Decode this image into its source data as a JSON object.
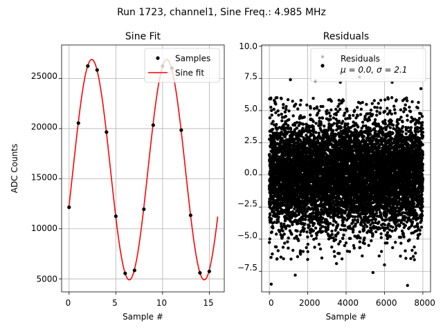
{
  "suptitle": "Run 1723, channel1, Sine Freq.: 4.985 MHz",
  "chart_data": [
    {
      "type": "line",
      "title": "Sine Fit",
      "xlabel": "Sample #",
      "ylabel": "ADC Counts",
      "xlim": [
        -0.8,
        16.6
      ],
      "ylim": [
        3700,
        28350
      ],
      "xticks": [
        0,
        5,
        10,
        15
      ],
      "yticks": [
        5000,
        10000,
        15000,
        20000,
        25000
      ],
      "grid": true,
      "legend_position": "top-right",
      "series": [
        {
          "name": "Samples",
          "kind": "scatter",
          "color": "#000000",
          "x": [
            0,
            1,
            2,
            3,
            4,
            5,
            6,
            7,
            8,
            9,
            10,
            11,
            12,
            13,
            14,
            15
          ],
          "y": [
            12150,
            20550,
            26250,
            25850,
            19650,
            11250,
            5550,
            5850,
            11950,
            20350,
            26250,
            26050,
            19850,
            11350,
            5600,
            5750
          ]
        },
        {
          "name": "Sine fit",
          "kind": "line",
          "color": "#ff0000",
          "x_range": [
            0,
            15.9
          ],
          "offset": 15900,
          "amplitude": 11000,
          "period_samples": 8.02,
          "phase_rad": -0.33
        }
      ]
    },
    {
      "type": "scatter",
      "title": "Residuals",
      "xlabel": "Sample #",
      "ylabel": "",
      "xlim": [
        -400,
        8400
      ],
      "ylim": [
        -9.1,
        10.1
      ],
      "xticks": [
        0,
        2000,
        4000,
        6000,
        8000
      ],
      "yticks": [
        -7.5,
        -5.0,
        -2.5,
        0.0,
        2.5,
        5.0,
        7.5,
        10.0
      ],
      "grid": true,
      "legend_position": "top-right",
      "n_points": 8000,
      "series": [
        {
          "name": "Residuals",
          "color": "#000000",
          "stats": {
            "mean": 0.0,
            "std": 2.1
          },
          "x_range": [
            0,
            8000
          ],
          "outliers": [
            {
              "x": 100,
              "y": -8.5
            },
            {
              "x": 1100,
              "y": 7.4
            },
            {
              "x": 1350,
              "y": -7.8
            },
            {
              "x": 2400,
              "y": 7.3
            },
            {
              "x": 3500,
              "y": -6.9
            },
            {
              "x": 3700,
              "y": 7.2
            },
            {
              "x": 4700,
              "y": 7.6
            },
            {
              "x": 5400,
              "y": -7.6
            },
            {
              "x": 6400,
              "y": 7.2
            },
            {
              "x": 7200,
              "y": -8.6
            },
            {
              "x": 7900,
              "y": 6.7
            },
            {
              "x": 400,
              "y": 6.0
            },
            {
              "x": 6000,
              "y": -7.0
            }
          ]
        }
      ]
    }
  ],
  "legends": {
    "left": {
      "samples_label": "Samples",
      "fit_label": "Sine fit"
    },
    "right": {
      "label": "Residuals",
      "stats_label": "μ = 0.0, σ = 2.1"
    }
  },
  "ticks": {
    "left_x": [
      "0",
      "5",
      "10",
      "15"
    ],
    "left_y": [
      "5000",
      "10000",
      "15000",
      "20000",
      "25000"
    ],
    "right_x": [
      "0",
      "2000",
      "4000",
      "6000",
      "8000"
    ],
    "right_y": [
      "−7.5",
      "−5.0",
      "−2.5",
      "0.0",
      "2.5",
      "5.0",
      "7.5",
      "10.0"
    ]
  }
}
